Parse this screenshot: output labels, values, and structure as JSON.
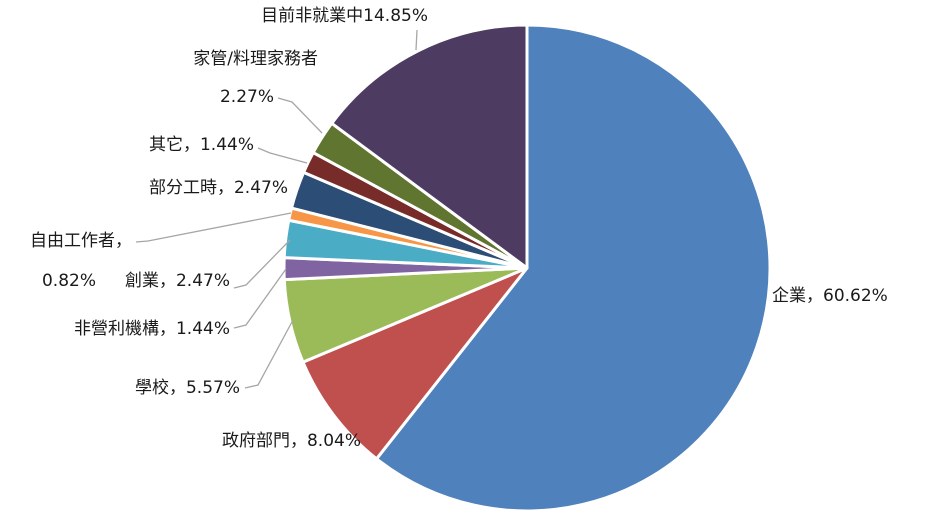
{
  "chart_data": {
    "type": "pie",
    "title": "",
    "start": "12-oclock",
    "direction": "clockwise",
    "slices": [
      {
        "name": "企業",
        "value": 60.62,
        "label": "企業，60.62%",
        "color": "#4f81bd"
      },
      {
        "name": "政府部門",
        "value": 8.04,
        "label": "政府部門，8.04%",
        "color": "#c0504d"
      },
      {
        "name": "學校",
        "value": 5.57,
        "label": "學校，5.57%",
        "color": "#9bbb59"
      },
      {
        "name": "非營利機構",
        "value": 1.44,
        "label": "非營利機構，1.44%",
        "color": "#8064a2"
      },
      {
        "name": "創業",
        "value": 2.47,
        "label": "創業，2.47%",
        "color": "#4bacc6"
      },
      {
        "name": "自由工作者",
        "value": 0.82,
        "label_line1": "自由工作者，",
        "label_line2": "0.82%",
        "color": "#f79646"
      },
      {
        "name": "部分工時",
        "value": 2.47,
        "label": "部分工時，2.47%",
        "color": "#2c4d75"
      },
      {
        "name": "其它",
        "value": 1.44,
        "label": "其它，1.44%",
        "color": "#772c2a"
      },
      {
        "name": "家管/料理家務者",
        "value": 2.27,
        "label_line1": "家管/料理家務者",
        "label_line2": "2.27%",
        "color": "#5f7530"
      },
      {
        "name": "目前非就業中",
        "value": 14.85,
        "label": "目前非就業中14.85%",
        "color": "#4d3b62"
      }
    ]
  }
}
